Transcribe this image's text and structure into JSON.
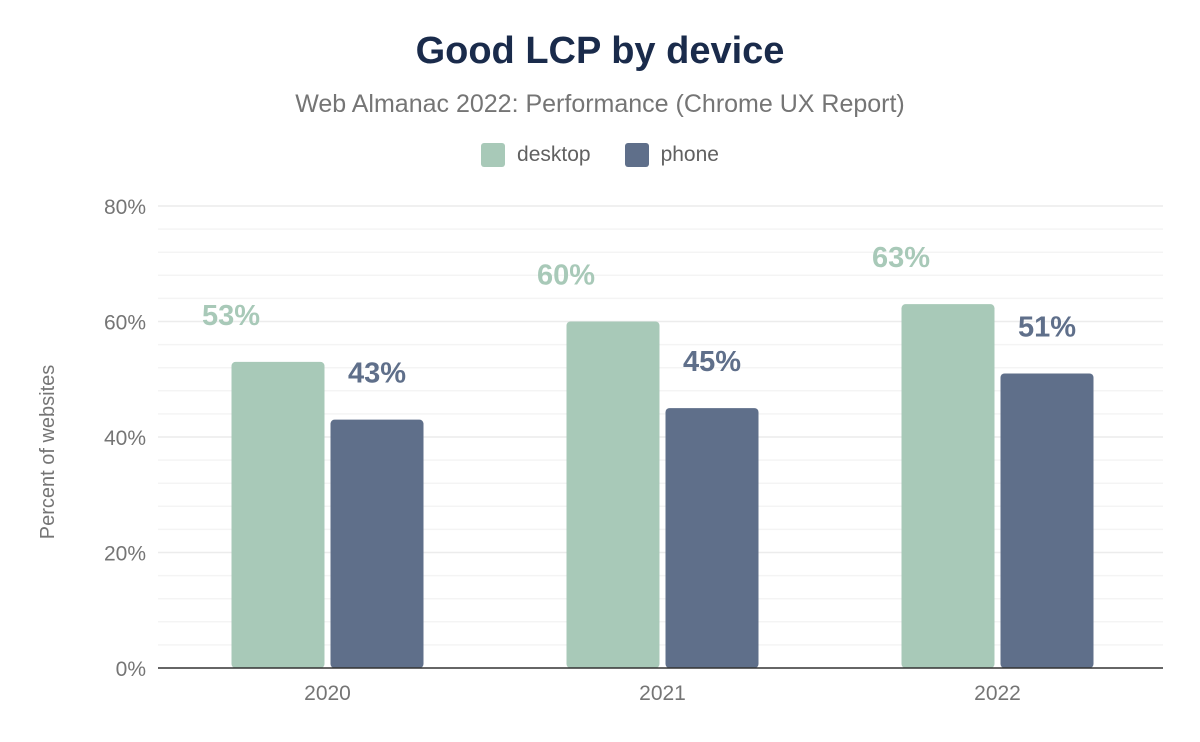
{
  "chart_data": {
    "type": "bar",
    "title": "Good LCP by device",
    "subtitle": "Web Almanac 2022: Performance (Chrome UX Report)",
    "xlabel": "",
    "ylabel": "Percent of websites",
    "categories": [
      "2020",
      "2021",
      "2022"
    ],
    "series": [
      {
        "name": "desktop",
        "values": [
          53,
          60,
          63
        ],
        "labels": [
          "53%",
          "60%",
          "63%"
        ],
        "color": "#a8c9b8"
      },
      {
        "name": "phone",
        "values": [
          43,
          45,
          51
        ],
        "labels": [
          "43%",
          "45%",
          "51%"
        ],
        "color": "#5f6f8a"
      }
    ],
    "ylim": [
      0,
      80
    ],
    "yticks": [
      0,
      20,
      40,
      60,
      80
    ],
    "ytick_labels": [
      "0%",
      "20%",
      "40%",
      "60%",
      "80%"
    ],
    "grid": true,
    "legend": "top-center"
  }
}
